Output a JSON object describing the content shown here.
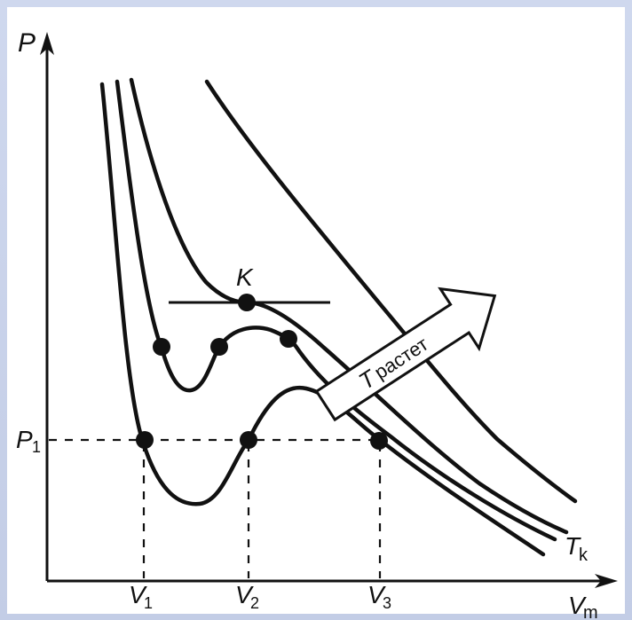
{
  "diagram": {
    "axis_y_label": "P",
    "axis_x_label": "V",
    "axis_x_label_sub": "m",
    "critical_point_label": "K",
    "critical_isotherm_label": "T",
    "critical_isotherm_label_sub": "k",
    "pressure_level_label": "P",
    "pressure_level_sub": "1",
    "volume_labels": [
      {
        "main": "V",
        "sub": "1"
      },
      {
        "main": "V",
        "sub": "2"
      },
      {
        "main": "V",
        "sub": "3"
      }
    ],
    "arrow_text_prefix": "T",
    "arrow_text": "растет"
  },
  "colors": {
    "frame": "#c9d3ea",
    "ink": "#111111",
    "paper": "#ffffff"
  }
}
